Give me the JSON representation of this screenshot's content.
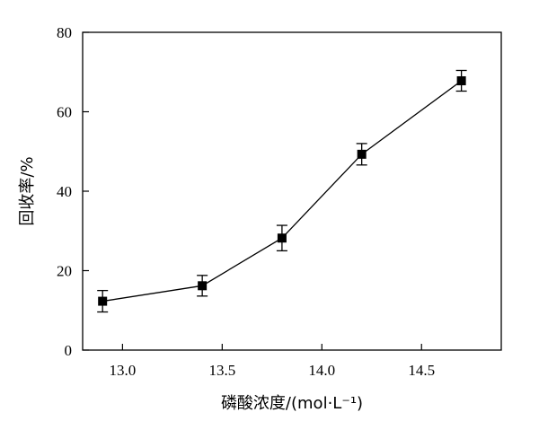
{
  "chart_data": {
    "type": "line",
    "xlabel": "磷酸浓度/(mol·L⁻¹)",
    "ylabel": "回收率/%",
    "xlim": [
      12.8,
      14.9
    ],
    "ylim": [
      0,
      80
    ],
    "xticks": [
      "13.0",
      "13.5",
      "14.0",
      "14.5"
    ],
    "yticks": [
      "0",
      "20",
      "40",
      "60",
      "80"
    ],
    "grid": false,
    "series": [
      {
        "x": [
          12.9,
          13.4,
          13.8,
          14.2,
          14.7
        ],
        "y": [
          12.3,
          16.2,
          28.2,
          49.3,
          67.8
        ],
        "error": [
          2.7,
          2.6,
          3.2,
          2.7,
          2.6
        ],
        "marker": "square",
        "color": "#000000"
      }
    ]
  }
}
